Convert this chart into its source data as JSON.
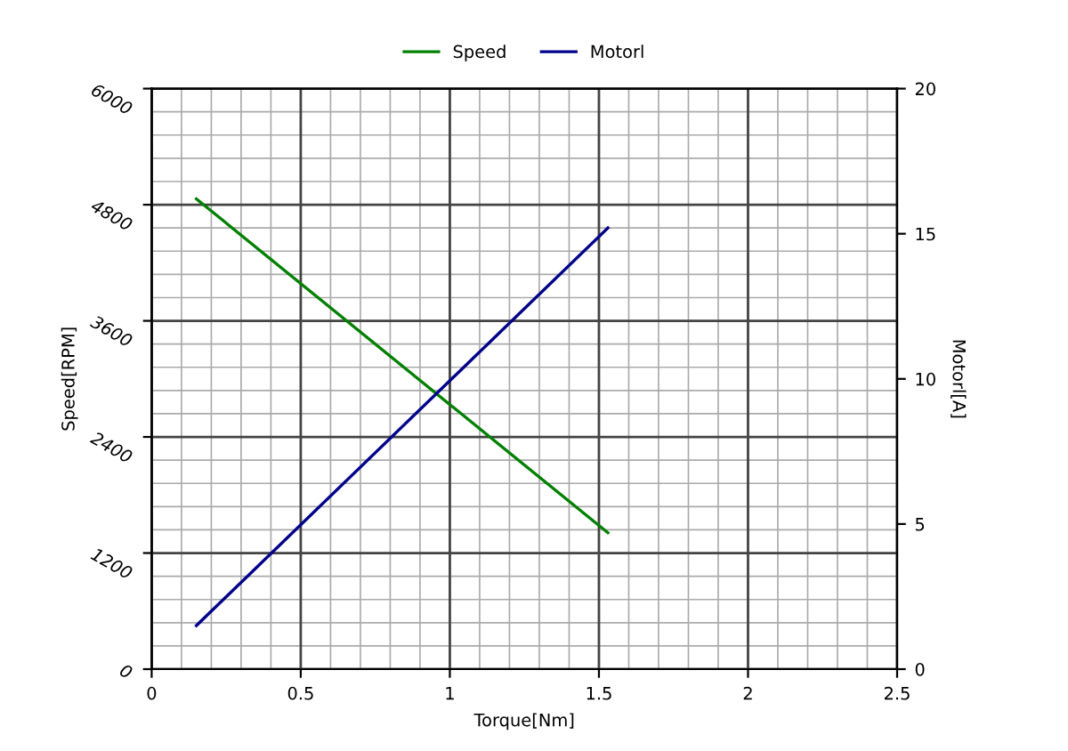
{
  "chart_data": {
    "type": "line",
    "xlabel": "Torque[Nm]",
    "ylabel": "Speed[RPM]",
    "y2label": "Motorl[A]",
    "x": [
      0.15,
      1.53
    ],
    "series": [
      {
        "name": "Speed",
        "color": "#008000",
        "values": [
          4860,
          1410
        ]
      },
      {
        "name": "Motorl",
        "color": "#00008b",
        "values": [
          1.5,
          15.2
        ],
        "axis": "y2"
      }
    ],
    "xlim": [
      0,
      2.5
    ],
    "xticks": [
      0,
      0.5,
      1,
      1.5,
      2,
      2.5
    ],
    "ylim": [
      0,
      6000
    ],
    "yticks": [
      0,
      1200,
      2400,
      3600,
      4800,
      6000
    ],
    "y2lim": [
      0,
      20
    ],
    "y2ticks": [
      0,
      5,
      10,
      15,
      20
    ],
    "grid": true,
    "legend": "top",
    "marker": "none",
    "line_style": "solid"
  }
}
